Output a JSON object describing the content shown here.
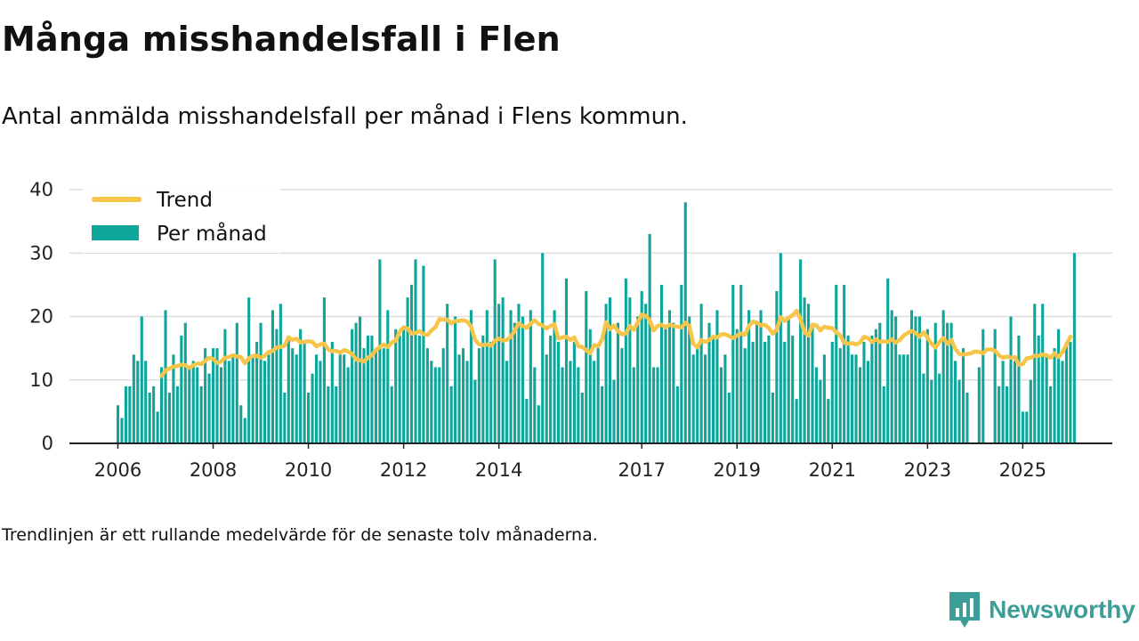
{
  "title": "Många misshandelsfall i Flen",
  "subtitle": "Antal anmälda misshandelsfall per månad i Flens kommun.",
  "footnote": "Trendlinjen är ett rullande medelvärde för de senaste tolv månaderna.",
  "brand": {
    "name": "Newsworthy",
    "icon": "newsworthy-logo-icon",
    "color": "#3d9e98"
  },
  "colors": {
    "bars": "#0ea59a",
    "trend": "#f7c54a",
    "axis": "#222222",
    "grid": "#dddddd"
  },
  "chart_data": {
    "type": "bar",
    "title": "",
    "xlabel": "",
    "ylabel": "",
    "ylim": [
      0,
      40
    ],
    "y_ticks": [
      0,
      10,
      20,
      30,
      40
    ],
    "x_ticks": [
      "2006",
      "2008",
      "2010",
      "2012",
      "2014",
      "2017",
      "2019",
      "2021",
      "2023",
      "2025"
    ],
    "x_range": [
      "2006-01",
      "2025-08"
    ],
    "grid": true,
    "legend": {
      "placement": "top-left",
      "entries": [
        "Trend",
        "Per månad"
      ]
    },
    "series": [
      {
        "name": "Per månad",
        "type": "bar",
        "start": "2006-01",
        "values": [
          6,
          4,
          9,
          9,
          14,
          13,
          20,
          13,
          8,
          9,
          5,
          12,
          21,
          8,
          14,
          9,
          17,
          19,
          12,
          13,
          12,
          9,
          15,
          11,
          15,
          15,
          12,
          18,
          13,
          14,
          19,
          6,
          4,
          23,
          14,
          16,
          19,
          13,
          14,
          21,
          18,
          22,
          8,
          17,
          15,
          14,
          18,
          16,
          8,
          11,
          14,
          13,
          23,
          9,
          16,
          9,
          14,
          14,
          12,
          18,
          19,
          20,
          15,
          17,
          17,
          15,
          29,
          15,
          21,
          9,
          18,
          17,
          18,
          23,
          25,
          29,
          17,
          28,
          15,
          13,
          12,
          12,
          15,
          22,
          9,
          20,
          14,
          15,
          13,
          21,
          10,
          15,
          17,
          21,
          16,
          29,
          22,
          23,
          13,
          21,
          19,
          22,
          20,
          7,
          21,
          12,
          6,
          30,
          14,
          17,
          21,
          16,
          12,
          26,
          13,
          16,
          12,
          8,
          24,
          18,
          13,
          15,
          9,
          22,
          23,
          10,
          19,
          15,
          26,
          23,
          12,
          20,
          24,
          22,
          33,
          12,
          12,
          25,
          18,
          21,
          19,
          9,
          25,
          38,
          20,
          14,
          15,
          22,
          14,
          19,
          17,
          21,
          12,
          14,
          8,
          25,
          18,
          25,
          15,
          21,
          16,
          19,
          21,
          16,
          17,
          8,
          24,
          30,
          16,
          20,
          17,
          7,
          29,
          23,
          22,
          19,
          12,
          10,
          14,
          7,
          16,
          25,
          15,
          25,
          17,
          14,
          14,
          12,
          16,
          13,
          17,
          18,
          19,
          9,
          26,
          21,
          20,
          14,
          14,
          14,
          21,
          20,
          20,
          11,
          18,
          10,
          19,
          11,
          21,
          19,
          19,
          13,
          10,
          15,
          8,
          0,
          0,
          12,
          18,
          0,
          0,
          18,
          9,
          13,
          9,
          20,
          13,
          17,
          5,
          5,
          10,
          22,
          17,
          22,
          14,
          9,
          15,
          18,
          13,
          16,
          16,
          30
        ]
      },
      {
        "name": "Trend",
        "type": "line",
        "start": "2006-12",
        "values": [
          10.6,
          11.5,
          11.8,
          12.1,
          12.2,
          12.4,
          12.3,
          11.9,
          12.3,
          12.6,
          12.5,
          13.0,
          13.5,
          13.3,
          12.7,
          12.9,
          13.5,
          13.6,
          13.9,
          13.7,
          13.6,
          12.6,
          13.4,
          13.8,
          13.8,
          13.5,
          13.8,
          14.4,
          14.6,
          15.1,
          15.2,
          15.4,
          16.7,
          16.3,
          16.5,
          15.9,
          16.0,
          16.1,
          16.0,
          15.3,
          15.6,
          15.7,
          14.8,
          14.5,
          14.6,
          14.3,
          14.7,
          14.5,
          14.1,
          13.2,
          13.1,
          12.9,
          13.5,
          13.9,
          14.7,
          15.2,
          15.6,
          15.2,
          15.9,
          16.2,
          17.6,
          18.3,
          18.1,
          17.3,
          17.4,
          17.7,
          17.2,
          17.1,
          17.8,
          18.3,
          19.6,
          19.5,
          19.5,
          18.9,
          19.3,
          19.3,
          19.4,
          19.2,
          18.4,
          16.3,
          15.6,
          15.5,
          15.6,
          15.4,
          16.2,
          16.5,
          16.2,
          16.3,
          16.8,
          17.8,
          18.9,
          18.5,
          18.2,
          18.9,
          19.4,
          18.8,
          18.6,
          18.1,
          18.5,
          18.8,
          16.5,
          16.7,
          16.8,
          16.3,
          16.7,
          15.3,
          15.2,
          14.7,
          14.2,
          15.5,
          15.3,
          16.4,
          19.1,
          18.0,
          18.6,
          17.7,
          17.2,
          17.3,
          18.5,
          17.9,
          19.1,
          20.3,
          20.1,
          19.4,
          17.8,
          18.5,
          18.7,
          18.3,
          18.7,
          18.5,
          18.4,
          18.3,
          19.0,
          18.5,
          15.7,
          15.1,
          16.3,
          16.0,
          16.3,
          16.8,
          16.7,
          17.2,
          17.2,
          16.9,
          16.6,
          17.0,
          17.3,
          17.1,
          18.5,
          19.2,
          19.0,
          18.6,
          18.7,
          18.2,
          17.3,
          17.9,
          19.9,
          19.3,
          19.8,
          20.2,
          20.9,
          19.6,
          17.5,
          17.0,
          18.7,
          18.6,
          17.8,
          18.4,
          18.2,
          18.2,
          17.5,
          17.0,
          15.9,
          15.7,
          15.8,
          15.6,
          15.9,
          16.8,
          16.6,
          16.0,
          16.4,
          16.0,
          16.1,
          16.0,
          16.4,
          15.9,
          16.3,
          17.0,
          17.4,
          17.7,
          17.4,
          16.8,
          17.5,
          16.7,
          15.7,
          15.1,
          16.0,
          16.6,
          15.7,
          16.3,
          14.9,
          14.1,
          14.0,
          14.1,
          14.2,
          14.5,
          14.4,
          14.2,
          14.8,
          14.8,
          14.6,
          13.9,
          13.5,
          13.7,
          13.5,
          13.6,
          12.4,
          12.5,
          13.4,
          13.5,
          13.8,
          13.8,
          14.0,
          13.9,
          13.5,
          14.2,
          13.6,
          14.4,
          15.6,
          16.8
        ]
      }
    ]
  }
}
